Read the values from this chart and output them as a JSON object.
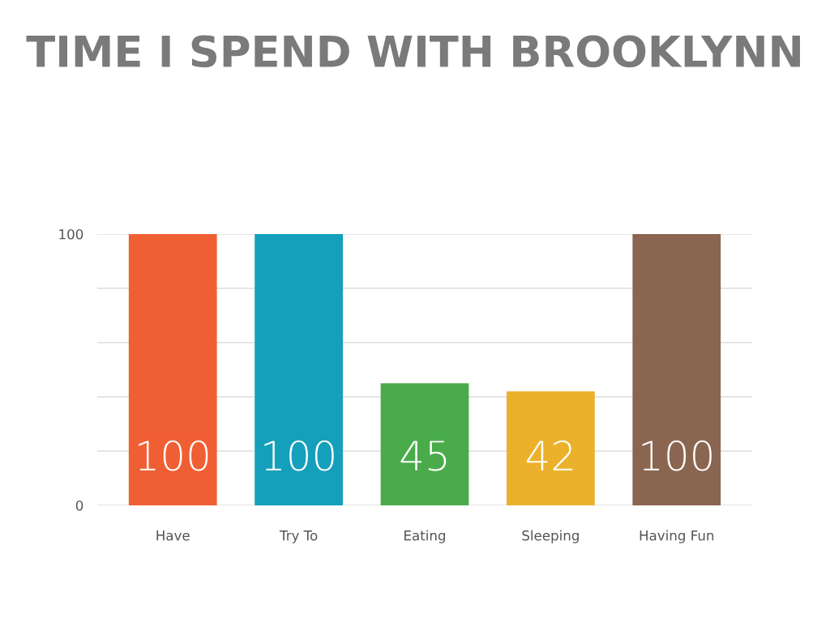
{
  "chart_data": {
    "type": "bar",
    "title": "TIME I SPEND WITH BROOKLYNN",
    "categories": [
      "Have",
      "Try To",
      "Eating",
      "Sleeping",
      "Having Fun"
    ],
    "values": [
      100,
      100,
      45,
      42,
      100
    ],
    "colors": [
      "#f05f33",
      "#149fbb",
      "#4aab4b",
      "#ecb12a",
      "#8a6651"
    ],
    "ylim": [
      0,
      100
    ],
    "yticks": [
      0,
      {
        "value": 20,
        "label": null
      },
      {
        "value": 40,
        "label": null
      },
      {
        "value": 60,
        "label": null
      },
      {
        "value": 80,
        "label": null
      },
      100
    ],
    "grid": "y",
    "data_labels": true
  }
}
